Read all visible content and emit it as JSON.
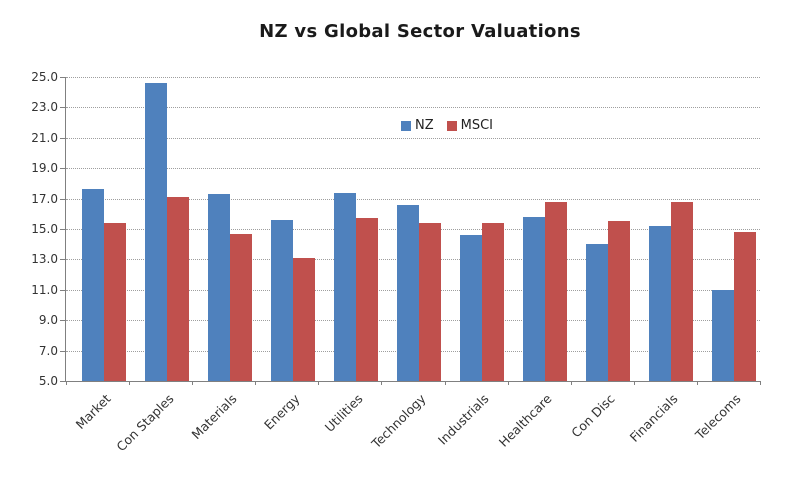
{
  "chart_data": {
    "type": "bar",
    "title": "NZ vs Global Sector Valuations",
    "categories": [
      "Market",
      "Con Staples",
      "Materials",
      "Energy",
      "Utilities",
      "Technology",
      "Industrials",
      "Healthcare",
      "Con Disc",
      "Financials",
      "Telecoms"
    ],
    "series": [
      {
        "name": "NZ",
        "color": "#4F81BD",
        "values": [
          17.6,
          24.6,
          17.3,
          15.6,
          17.4,
          16.6,
          14.6,
          15.8,
          14.0,
          15.2,
          11.0
        ]
      },
      {
        "name": "MSCI",
        "color": "#C0504D",
        "values": [
          15.4,
          17.1,
          14.7,
          13.1,
          15.7,
          15.4,
          15.4,
          16.8,
          15.5,
          16.8,
          14.8
        ]
      }
    ],
    "ylim": [
      5.0,
      25.0
    ],
    "ytick_step": 2.0,
    "ytick_labels": [
      "25.0",
      "23.0",
      "21.0",
      "19.0",
      "17.0",
      "15.0",
      "13.0",
      "11.0",
      "9.0",
      "7.0",
      "5.0"
    ],
    "grid": "horizontal-dotted",
    "legend_position": "inside-top-center",
    "colors": {
      "grid": "#9E9E9E",
      "axis": "#808080",
      "tick_text": "#333333",
      "title_text": "#1A1A1A",
      "background": "#FFFFFF"
    }
  }
}
